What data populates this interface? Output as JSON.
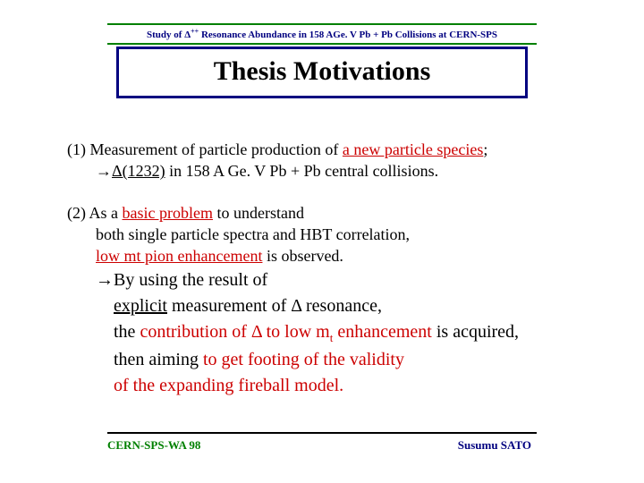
{
  "header": {
    "prefix": "Study of ",
    "delta": "Δ",
    "superscript": "++",
    "suffix": " Resonance Abundance in 158 AGe. V Pb + Pb Collisions at CERN-SPS"
  },
  "title": "Thesis Motivations",
  "point1": {
    "num": "(1) ",
    "a": "Measurement of particle production of ",
    "b": "a new particle species",
    "c": ";",
    "arrow": "→",
    "d": "Δ(1232)",
    "e": " in 158 A Ge. V Pb + Pb central collisions."
  },
  "point2": {
    "num": "(2) ",
    "a": "As a ",
    "b": "basic problem",
    "c": " to understand",
    "d": "both single particle spectra and HBT correlation,",
    "e": "low mt pion enhancement",
    "f": " is observed.",
    "g": "→By using the result of",
    "h": "explicit",
    "i": " measurement of Δ resonance,",
    "j": "the ",
    "k": "contribution of Δ to low m",
    "ksub": "t",
    "k2": " enhancement",
    "l": " is acquired,",
    "m": "then  aiming ",
    "n": "to get footing of the validity",
    "o": "of the expanding fireball model."
  },
  "footer": {
    "left": "CERN-SPS-WA 98",
    "right": "Susumu   SATO"
  },
  "colors": {
    "green": "#008000",
    "navy": "#000080",
    "red": "#cc0000",
    "black": "#000000"
  }
}
